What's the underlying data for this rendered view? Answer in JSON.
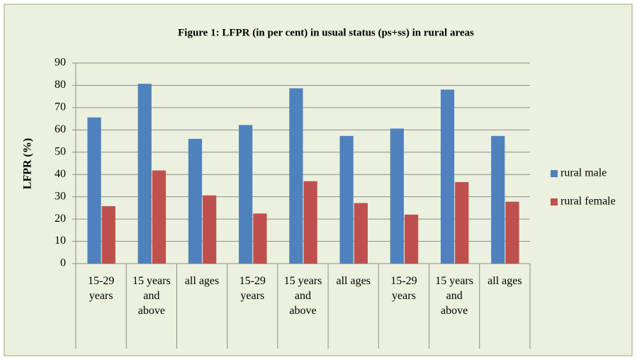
{
  "chart_data": {
    "type": "bar",
    "title": "Figure 1: LFPR (in per cent) in usual status (ps+ss)  in rural areas",
    "y_label": "LFPR (%)",
    "categories": [
      "15-29 years",
      "15 years and above",
      "all ages",
      "15-29 years",
      "15 years and above",
      "all ages",
      "15-29 years",
      "15 years and above",
      "all ages"
    ],
    "series": [
      {
        "name": "rural male",
        "color": "#4f81bd",
        "values": [
          65.6,
          80.7,
          56.0,
          62.2,
          78.7,
          57.3,
          60.6,
          78.1,
          57.3
        ]
      },
      {
        "name": "rural female",
        "color": "#c0504d",
        "values": [
          25.8,
          41.8,
          30.6,
          22.5,
          37.0,
          27.2,
          22.0,
          36.6,
          27.8
        ]
      }
    ],
    "ylim": [
      0,
      90
    ],
    "yticks": [
      0,
      10,
      20,
      30,
      40,
      50,
      60,
      70,
      80,
      90
    ],
    "grid": true,
    "legend": "right"
  }
}
